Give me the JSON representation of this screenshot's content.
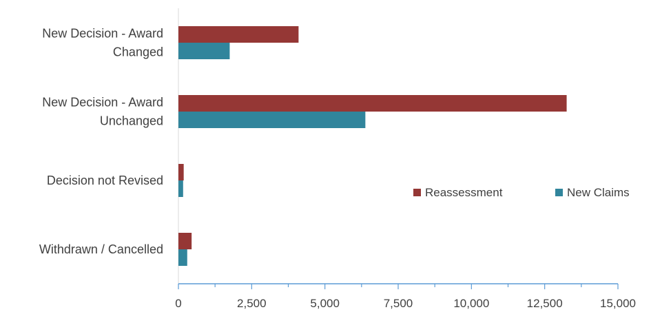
{
  "chart_data": {
    "type": "bar",
    "orientation": "horizontal",
    "categories": [
      [
        "New Decision - Award",
        "Changed"
      ],
      [
        "New Decision - Award",
        "Unchanged"
      ],
      [
        "Decision not Revised"
      ],
      [
        "Withdrawn / Cancelled"
      ]
    ],
    "series": [
      {
        "name": "Reassessment",
        "values": [
          4100,
          13250,
          180,
          450
        ],
        "color": "#953735"
      },
      {
        "name": "New Claims",
        "values": [
          1750,
          6380,
          160,
          300
        ],
        "color": "#31859c"
      }
    ],
    "xlim": [
      0,
      15000
    ],
    "xticks": [
      0,
      2500,
      5000,
      7500,
      10000,
      12500,
      15000
    ],
    "xtick_labels": [
      "0",
      "2,500",
      "5,000",
      "7,500",
      "10,000",
      "12,500",
      "15,000"
    ],
    "axis_color": "#5b9bd5",
    "grid": false,
    "legend": {
      "position": "inside-right",
      "entries": [
        "Reassessment",
        "New Claims"
      ]
    }
  }
}
